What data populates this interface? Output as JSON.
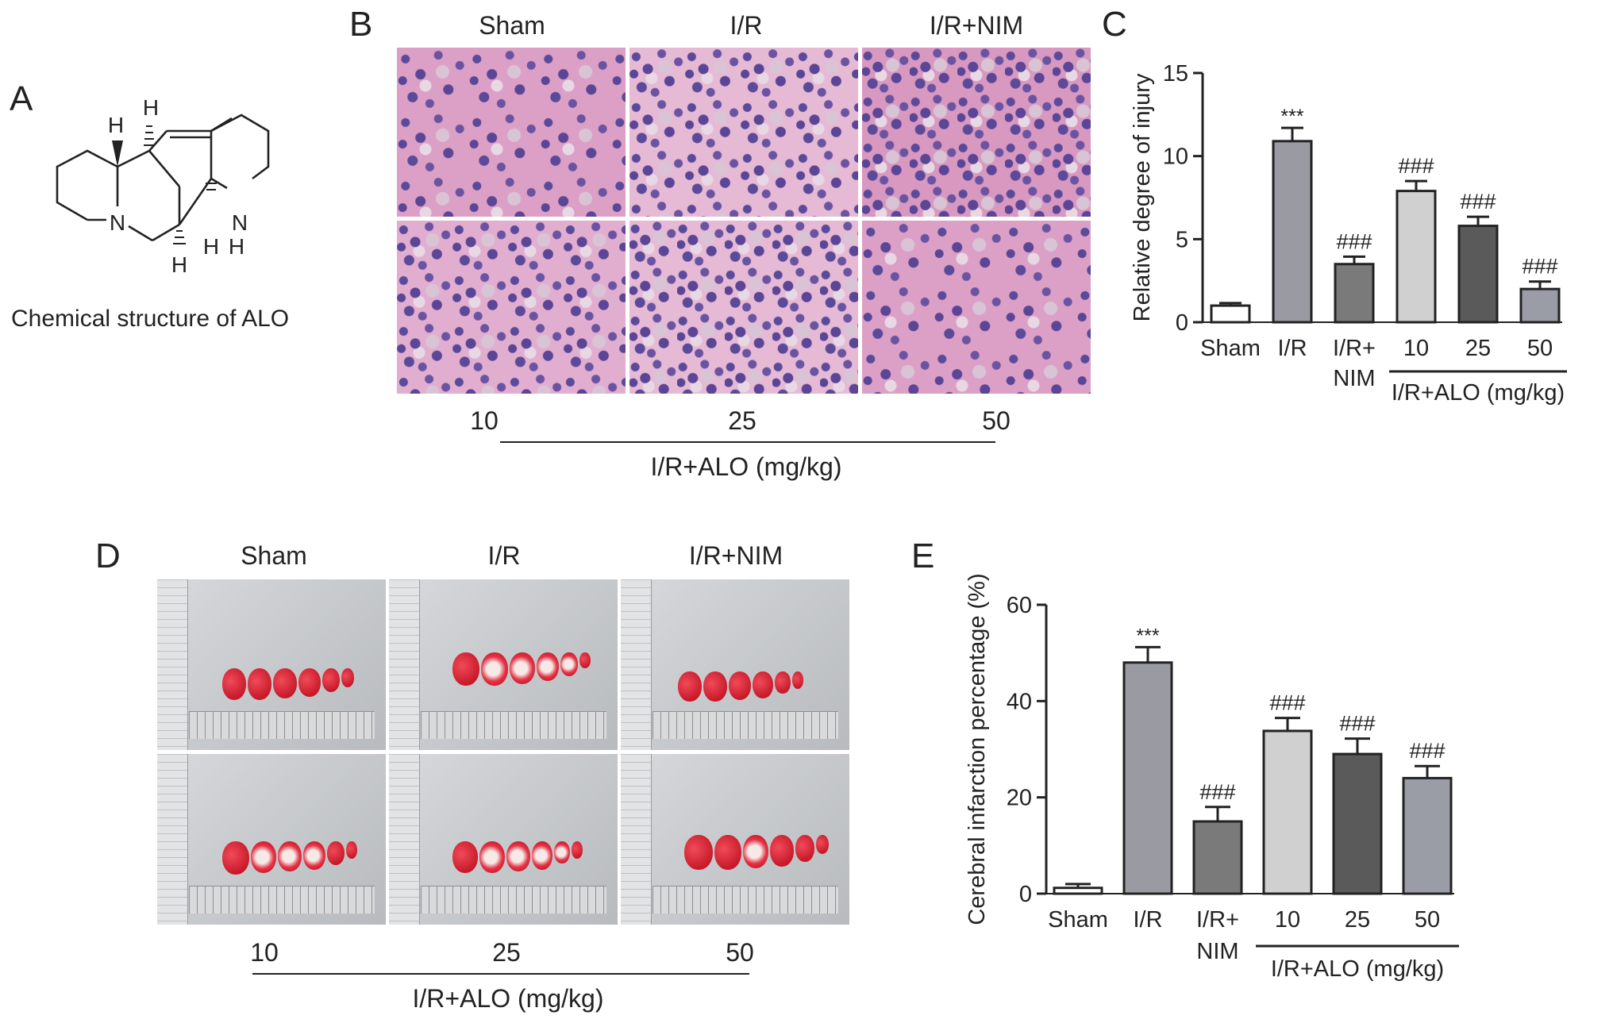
{
  "panels": {
    "A": {
      "letter": "A",
      "caption": "Chemical structure of ALO",
      "atoms": {
        "h1": "H",
        "h2": "H",
        "h3": "H",
        "h4": "H",
        "h5": "H",
        "n1": "N",
        "n2": "N"
      }
    },
    "B": {
      "letter": "B",
      "top_labels": [
        "Sham",
        "I/R",
        "I/R+NIM"
      ],
      "bottom_labels": [
        "10",
        "25",
        "50"
      ],
      "group_label": "I/R+ALO (mg/kg)"
    },
    "D": {
      "letter": "D",
      "top_labels": [
        "Sham",
        "I/R",
        "I/R+NIM"
      ],
      "bottom_labels": [
        "10",
        "25",
        "50"
      ],
      "group_label": "I/R+ALO (mg/kg)"
    },
    "C": {
      "letter": "C"
    },
    "E": {
      "letter": "E"
    }
  },
  "chart_data": [
    {
      "type": "bar",
      "panel": "C",
      "ylabel": "Relative degree of injury",
      "ylim": [
        0,
        15
      ],
      "yticks": [
        0,
        5,
        10,
        15
      ],
      "categories": [
        "Sham",
        "I/R",
        "I/R+\nNIM",
        "10",
        "25",
        "50"
      ],
      "group_label": "I/R+ALO (mg/kg)",
      "values": [
        1.0,
        10.9,
        3.5,
        7.9,
        5.8,
        2.0
      ],
      "errors": [
        0.15,
        0.8,
        0.45,
        0.6,
        0.55,
        0.45
      ],
      "annotations": [
        "",
        "***",
        "###",
        "###",
        "###",
        "###"
      ],
      "colors": [
        "#ffffff",
        "#9a9aa2",
        "#7a7a7a",
        "#d0d0d0",
        "#5a5a5a",
        "#9a9ca6"
      ]
    },
    {
      "type": "bar",
      "panel": "E",
      "ylabel": "Cerebral infarction percentage (%)",
      "ylim": [
        0,
        60
      ],
      "yticks": [
        0,
        20,
        40,
        60
      ],
      "categories": [
        "Sham",
        "I/R",
        "I/R+\nNIM",
        "10",
        "25",
        "50"
      ],
      "group_label": "I/R+ALO (mg/kg)",
      "values": [
        1.2,
        48.0,
        15.0,
        33.8,
        29.0,
        24.0
      ],
      "errors": [
        0.8,
        3.2,
        3.0,
        2.7,
        3.2,
        2.5
      ],
      "annotations": [
        "",
        "***",
        "###",
        "###",
        "###",
        "###"
      ],
      "colors": [
        "#ffffff",
        "#9a9aa2",
        "#7a7a7a",
        "#d0d0d0",
        "#5a5a5a",
        "#9a9ca6"
      ]
    }
  ]
}
